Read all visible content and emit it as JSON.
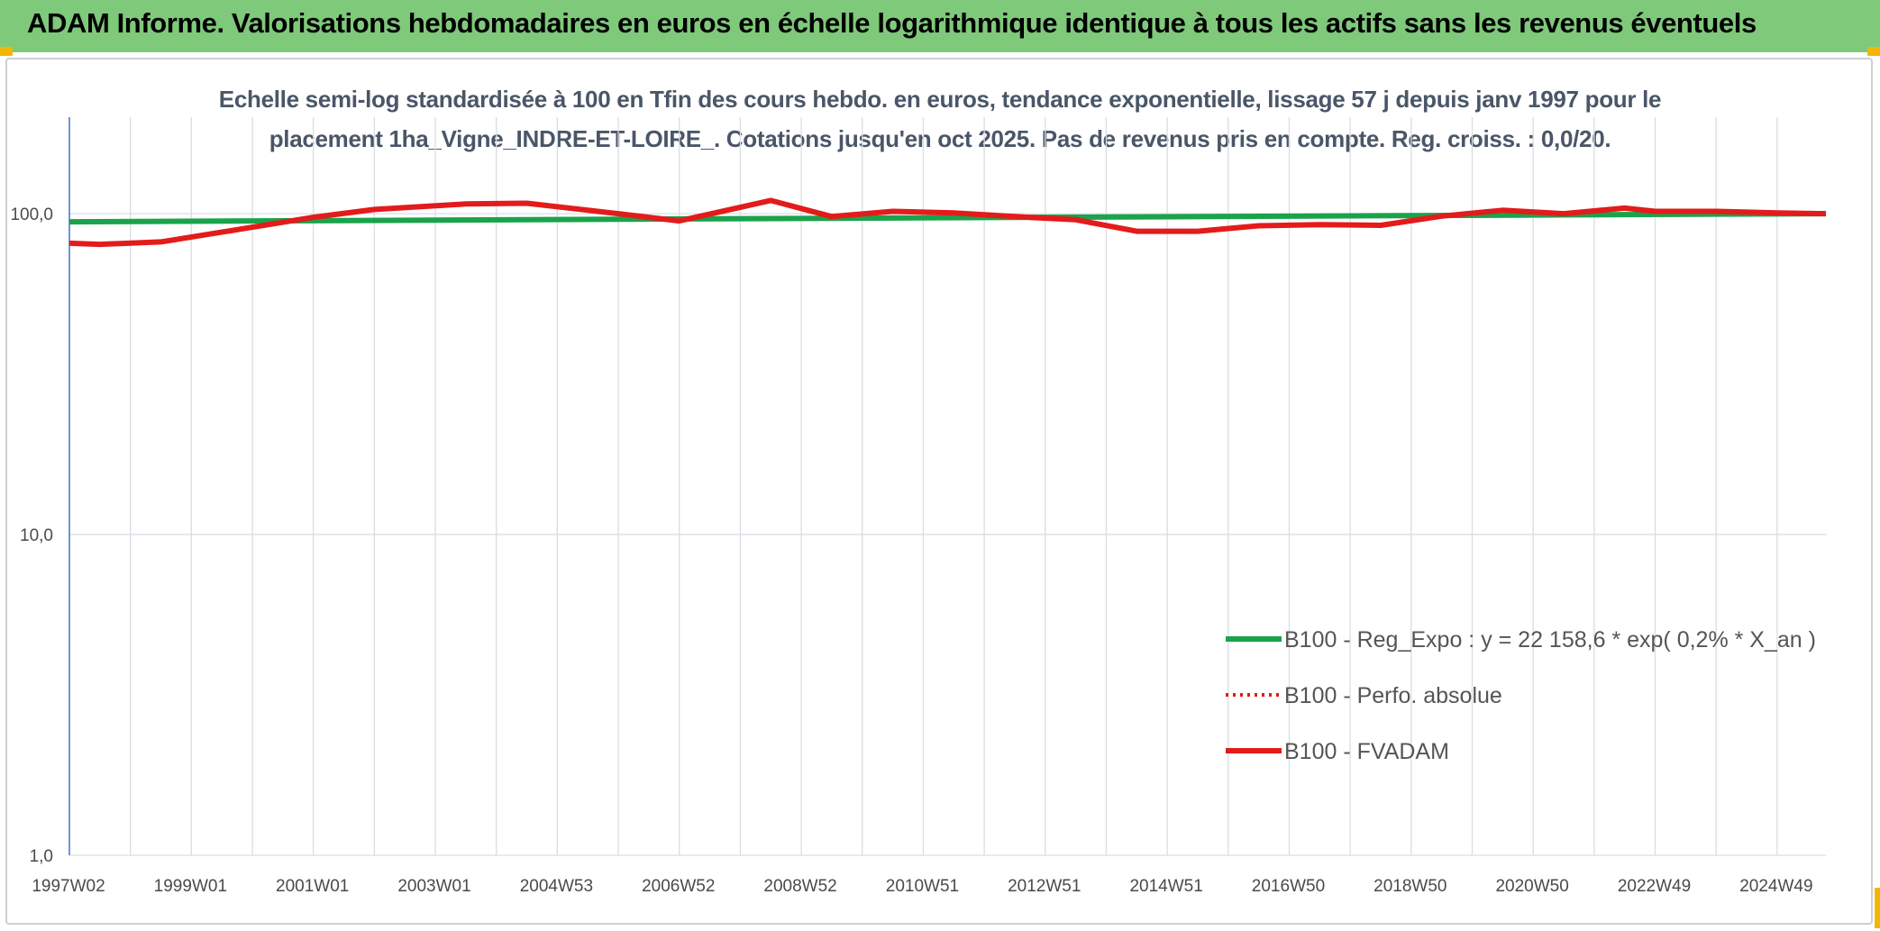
{
  "header": {
    "title": "ADAM Informe. Valorisations hebdomadaires en euros en échelle logarithmique identique à tous les actifs sans les revenus éventuels"
  },
  "colors": {
    "header_bg": "#7fc97a",
    "corner_accent": "#f2b705",
    "subtitle_text": "#4a5668",
    "grid": "#d9dde3",
    "axis": "#4472c4",
    "regression_line": "#1aa34a",
    "perf_line": "#e31b1b",
    "fvadam_line": "#e31b1b"
  },
  "chart_data": {
    "type": "line",
    "title_lines": [
      "Echelle semi-log standardisée à 100 en Tfin des cours hebdo. en euros, tendance exponentielle, lissage 57 j depuis janv 1997 pour le",
      "placement 1ha_Vigne_INDRE-ET-LOIRE_. Cotations jusqu'en oct 2025. Pas de revenus pris en compte. Reg. croiss. : 0,0/20."
    ],
    "y_scale": "log",
    "ylim": [
      1,
      200
    ],
    "y_ticks": [
      {
        "value": 1,
        "label": "1,0"
      },
      {
        "value": 10,
        "label": "10,0"
      },
      {
        "value": 100,
        "label": "100,0"
      }
    ],
    "x_range": [
      1997.0,
      2025.8
    ],
    "x_ticks": [
      {
        "x": 1997.0,
        "label": "1997W02"
      },
      {
        "x": 1999.0,
        "label": "1999W01"
      },
      {
        "x": 2001.0,
        "label": "2001W01"
      },
      {
        "x": 2003.0,
        "label": "2003W01"
      },
      {
        "x": 2005.0,
        "label": "2004W53"
      },
      {
        "x": 2007.0,
        "label": "2006W52"
      },
      {
        "x": 2009.0,
        "label": "2008W52"
      },
      {
        "x": 2011.0,
        "label": "2010W51"
      },
      {
        "x": 2013.0,
        "label": "2012W51"
      },
      {
        "x": 2015.0,
        "label": "2014W51"
      },
      {
        "x": 2017.0,
        "label": "2016W50"
      },
      {
        "x": 2019.0,
        "label": "2018W50"
      },
      {
        "x": 2021.0,
        "label": "2020W50"
      },
      {
        "x": 2023.0,
        "label": "2022W49"
      },
      {
        "x": 2025.0,
        "label": "2024W49"
      }
    ],
    "grid": "vertical and horizontal",
    "legend_position": "bottom-right",
    "series": [
      {
        "name": "B100 - Reg_Expo : y = 22 158,6 * exp( 0,2% *  X_an )",
        "style": "solid",
        "color": "#1aa34a",
        "x": [
          1997.0,
          2025.8
        ],
        "y": [
          94.4,
          100.0
        ]
      },
      {
        "name": "B100 - Perfo. absolue",
        "style": "dotted",
        "color": "#e31b1b",
        "x": [
          1997.0,
          1997.5,
          1998.5,
          2000.0,
          2001.0,
          2002.0,
          2003.5,
          2004.5,
          2006.0,
          2007.0,
          2008.5,
          2009.5,
          2010.5,
          2011.5,
          2012.5,
          2013.5,
          2014.5,
          2015.5,
          2016.5,
          2017.5,
          2018.5,
          2019.5,
          2020.5,
          2021.5,
          2022.5,
          2023.0,
          2024.0,
          2025.0,
          2025.8
        ],
        "y": [
          80.9,
          80.3,
          81.7,
          90.8,
          97.5,
          103.1,
          107.3,
          107.8,
          100.0,
          95.0,
          110.0,
          98.0,
          101.7,
          100.6,
          98.0,
          95.8,
          88.2,
          88.2,
          91.7,
          92.5,
          92.0,
          98.3,
          102.5,
          100.0,
          104.1,
          101.7,
          101.7,
          100.6,
          100.0
        ]
      },
      {
        "name": "B100 - FVADAM",
        "style": "solid",
        "color": "#e31b1b",
        "x": [
          1997.0,
          1997.5,
          1998.5,
          2000.0,
          2001.0,
          2002.0,
          2003.5,
          2004.5,
          2006.0,
          2007.0,
          2008.5,
          2009.5,
          2010.5,
          2011.5,
          2012.5,
          2013.5,
          2014.5,
          2015.5,
          2016.5,
          2017.5,
          2018.5,
          2019.5,
          2020.5,
          2021.5,
          2022.5,
          2023.0,
          2024.0,
          2025.0,
          2025.8
        ],
        "y": [
          80.9,
          80.3,
          81.7,
          90.8,
          97.5,
          103.1,
          107.3,
          107.8,
          100.0,
          95.0,
          110.0,
          98.0,
          101.7,
          100.6,
          98.0,
          95.8,
          88.2,
          88.2,
          91.7,
          92.5,
          92.0,
          98.3,
          102.5,
          100.0,
          104.1,
          101.7,
          101.7,
          100.6,
          100.0
        ]
      }
    ]
  }
}
